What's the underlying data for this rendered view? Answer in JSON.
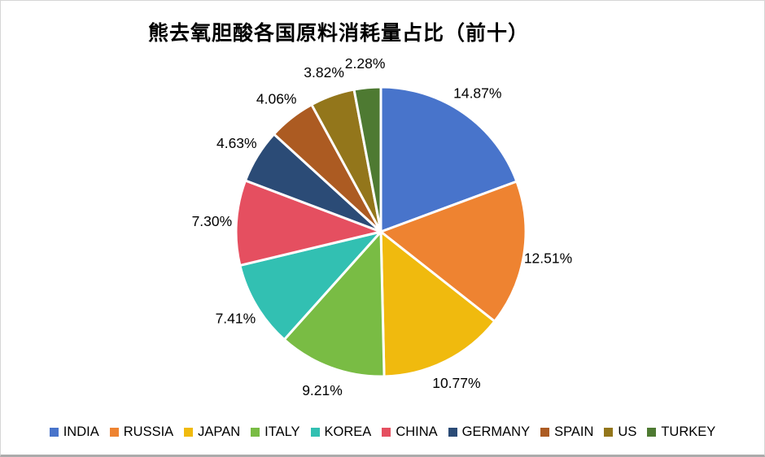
{
  "page": {
    "title": "熊去氧胆酸各国原料消耗量占比（前十）"
  },
  "chart_data": {
    "type": "pie",
    "title": "熊去氧胆酸各国原料消耗量占比（前十）",
    "label_format": "percent",
    "label_position": "outside",
    "start_angle_deg": 0,
    "direction": "clockwise",
    "legend_position": "bottom",
    "separator_color": "#ffffff",
    "background_color": "#ffffff",
    "title_color": "#000000",
    "label_color": "#000000",
    "slices": [
      {
        "label": "INDIA",
        "value": 14.87,
        "display": "14.87%",
        "color": "#4874CB"
      },
      {
        "label": "RUSSIA",
        "value": 12.51,
        "display": "12.51%",
        "color": "#EE8331"
      },
      {
        "label": "JAPAN",
        "value": 10.77,
        "display": "10.77%",
        "color": "#F0BA0E"
      },
      {
        "label": "ITALY",
        "value": 9.21,
        "display": "9.21%",
        "color": "#79BC44"
      },
      {
        "label": "KOREA",
        "value": 7.41,
        "display": "7.41%",
        "color": "#32C0B2"
      },
      {
        "label": "CHINA",
        "value": 7.3,
        "display": "7.30%",
        "color": "#E54F60"
      },
      {
        "label": "GERMANY",
        "value": 4.63,
        "display": "4.63%",
        "color": "#2B4B76"
      },
      {
        "label": "SPAIN",
        "value": 4.06,
        "display": "4.06%",
        "color": "#AC5B22"
      },
      {
        "label": "US",
        "value": 3.82,
        "display": "3.82%",
        "color": "#93761B"
      },
      {
        "label": "TURKEY",
        "value": 2.28,
        "display": "2.28%",
        "color": "#4E7A32"
      }
    ]
  }
}
